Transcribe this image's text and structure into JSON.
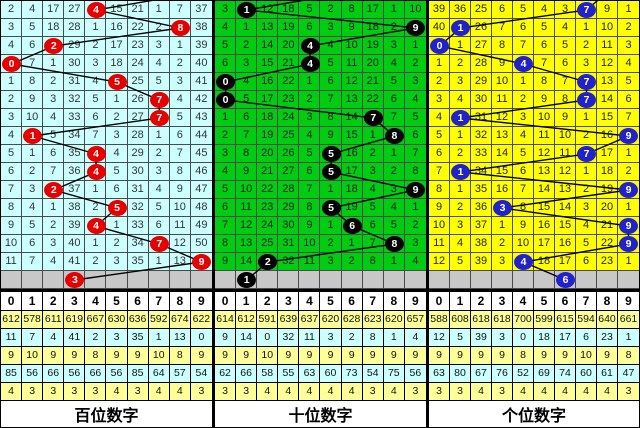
{
  "chart_data": {
    "type": "table",
    "title": "lottery-digit-trend-chart",
    "columns": [
      "0",
      "1",
      "2",
      "3",
      "4",
      "5",
      "6",
      "7",
      "8",
      "9"
    ],
    "stat_row_colors": [
      "#FFFF99",
      "#CCFFFF",
      "#FFFF99",
      "#CCFFFF",
      "#FFFF99"
    ],
    "gray_row_color": "#C8C8C8",
    "line_color": "#000000",
    "panels": [
      {
        "id": "hundreds",
        "label": "百位数字",
        "bg": "#CCFFFF",
        "ball_color": "#E60000",
        "text_color": "#333333",
        "rows": [
          [
            2,
            4,
            17,
            27,
            4,
            15,
            21,
            1,
            7,
            37
          ],
          [
            3,
            5,
            18,
            28,
            1,
            16,
            22,
            2,
            8,
            38
          ],
          [
            4,
            6,
            2,
            29,
            2,
            17,
            23,
            3,
            1,
            39
          ],
          [
            0,
            7,
            1,
            30,
            3,
            18,
            24,
            4,
            2,
            40
          ],
          [
            1,
            8,
            2,
            31,
            4,
            5,
            25,
            5,
            3,
            41
          ],
          [
            2,
            9,
            3,
            32,
            5,
            1,
            26,
            7,
            4,
            42
          ],
          [
            3,
            10,
            4,
            33,
            6,
            2,
            27,
            7,
            5,
            43
          ],
          [
            4,
            1,
            5,
            34,
            7,
            3,
            28,
            1,
            6,
            44
          ],
          [
            5,
            1,
            6,
            35,
            4,
            4,
            29,
            2,
            7,
            45
          ],
          [
            6,
            2,
            7,
            36,
            4,
            5,
            30,
            3,
            8,
            46
          ],
          [
            7,
            3,
            2,
            37,
            1,
            6,
            31,
            4,
            9,
            47
          ],
          [
            8,
            4,
            1,
            38,
            2,
            5,
            32,
            5,
            10,
            48
          ],
          [
            9,
            5,
            2,
            39,
            4,
            1,
            33,
            6,
            11,
            49
          ],
          [
            10,
            6,
            3,
            40,
            1,
            2,
            34,
            7,
            12,
            50
          ],
          [
            11,
            7,
            4,
            41,
            2,
            3,
            35,
            1,
            13,
            9
          ]
        ],
        "ball_cols": [
          4,
          8,
          2,
          0,
          5,
          7,
          7,
          1,
          4,
          4,
          2,
          5,
          4,
          7,
          9
        ],
        "prev_col": 9,
        "gray_ball": 3,
        "stats": [
          [
            612,
            578,
            611,
            619,
            667,
            630,
            636,
            592,
            674,
            622
          ],
          [
            11,
            7,
            4,
            41,
            2,
            3,
            35,
            1,
            13,
            0
          ],
          [
            9,
            10,
            9,
            9,
            8,
            9,
            9,
            10,
            8,
            9
          ],
          [
            85,
            56,
            66,
            56,
            66,
            56,
            85,
            64,
            57,
            54
          ],
          [
            4,
            3,
            3,
            3,
            3,
            4,
            3,
            4,
            4,
            3
          ]
        ]
      },
      {
        "id": "tens",
        "label": "十位数字",
        "bg": "#00CC11",
        "ball_color": "#000000",
        "text_color": "#1a1a1a",
        "rows": [
          [
            3,
            1,
            12,
            18,
            5,
            2,
            8,
            17,
            1,
            10
          ],
          [
            4,
            1,
            13,
            19,
            6,
            3,
            9,
            18,
            2,
            9
          ],
          [
            5,
            2,
            14,
            20,
            4,
            4,
            10,
            19,
            3,
            1
          ],
          [
            6,
            3,
            15,
            21,
            4,
            5,
            11,
            20,
            4,
            2
          ],
          [
            0,
            4,
            16,
            22,
            1,
            6,
            12,
            21,
            5,
            3
          ],
          [
            0,
            5,
            17,
            23,
            2,
            7,
            13,
            22,
            6,
            4
          ],
          [
            1,
            6,
            18,
            24,
            3,
            8,
            14,
            7,
            7,
            5
          ],
          [
            2,
            7,
            19,
            25,
            4,
            9,
            15,
            1,
            8,
            6
          ],
          [
            3,
            8,
            20,
            26,
            5,
            5,
            16,
            2,
            1,
            7
          ],
          [
            4,
            9,
            21,
            27,
            6,
            5,
            17,
            3,
            2,
            8
          ],
          [
            5,
            10,
            22,
            28,
            7,
            1,
            18,
            4,
            3,
            9
          ],
          [
            6,
            11,
            23,
            29,
            8,
            5,
            19,
            5,
            4,
            1
          ],
          [
            7,
            12,
            24,
            30,
            9,
            1,
            6,
            6,
            5,
            2
          ],
          [
            8,
            13,
            25,
            31,
            10,
            2,
            1,
            7,
            8,
            3
          ],
          [
            9,
            14,
            2,
            32,
            11,
            3,
            2,
            8,
            1,
            4
          ]
        ],
        "ball_cols": [
          1,
          9,
          4,
          4,
          0,
          0,
          7,
          8,
          5,
          5,
          9,
          5,
          6,
          8,
          2
        ],
        "prev_col": 6,
        "gray_ball": 1,
        "stats": [
          [
            614,
            612,
            591,
            639,
            637,
            620,
            628,
            623,
            620,
            657
          ],
          [
            9,
            14,
            0,
            32,
            11,
            3,
            2,
            8,
            1,
            4
          ],
          [
            9,
            9,
            10,
            9,
            9,
            9,
            9,
            9,
            9,
            9
          ],
          [
            62,
            66,
            58,
            55,
            63,
            60,
            73,
            54,
            75,
            56
          ],
          [
            3,
            3,
            4,
            4,
            4,
            4,
            4,
            3,
            4,
            3
          ]
        ]
      },
      {
        "id": "units",
        "label": "个位数字",
        "bg": "#FFFF00",
        "ball_color": "#2222CC",
        "text_color": "#222244",
        "rows": [
          [
            39,
            36,
            25,
            6,
            5,
            4,
            3,
            7,
            9,
            1
          ],
          [
            40,
            1,
            26,
            7,
            6,
            5,
            4,
            1,
            10,
            2
          ],
          [
            0,
            1,
            27,
            8,
            7,
            6,
            5,
            2,
            11,
            3
          ],
          [
            1,
            2,
            28,
            9,
            4,
            7,
            6,
            3,
            12,
            4
          ],
          [
            2,
            3,
            29,
            10,
            1,
            8,
            7,
            7,
            13,
            5
          ],
          [
            3,
            4,
            30,
            11,
            2,
            9,
            8,
            7,
            14,
            6
          ],
          [
            4,
            1,
            31,
            12,
            3,
            10,
            9,
            1,
            15,
            7
          ],
          [
            5,
            1,
            32,
            13,
            4,
            11,
            10,
            2,
            16,
            9
          ],
          [
            6,
            2,
            33,
            14,
            5,
            12,
            11,
            7,
            17,
            1
          ],
          [
            7,
            1,
            34,
            15,
            6,
            13,
            12,
            1,
            18,
            2
          ],
          [
            8,
            1,
            35,
            16,
            7,
            14,
            13,
            2,
            19,
            9
          ],
          [
            9,
            2,
            36,
            3,
            8,
            15,
            14,
            3,
            20,
            1
          ],
          [
            10,
            3,
            37,
            1,
            9,
            16,
            15,
            4,
            21,
            9
          ],
          [
            11,
            4,
            38,
            2,
            10,
            17,
            16,
            5,
            22,
            9
          ],
          [
            12,
            5,
            39,
            3,
            4,
            18,
            17,
            6,
            23,
            1
          ]
        ],
        "ball_cols": [
          7,
          1,
          0,
          4,
          7,
          7,
          1,
          9,
          7,
          1,
          9,
          3,
          9,
          9,
          4
        ],
        "prev_col": 8,
        "gray_ball": 6,
        "stats": [
          [
            588,
            608,
            618,
            618,
            700,
            599,
            615,
            594,
            640,
            661
          ],
          [
            12,
            5,
            39,
            3,
            0,
            18,
            17,
            6,
            23,
            1
          ],
          [
            9,
            9,
            9,
            9,
            8,
            9,
            9,
            10,
            9,
            8
          ],
          [
            63,
            80,
            67,
            76,
            52,
            69,
            74,
            60,
            61,
            47
          ],
          [
            3,
            3,
            4,
            3,
            4,
            4,
            4,
            4,
            4,
            3
          ]
        ]
      }
    ]
  }
}
